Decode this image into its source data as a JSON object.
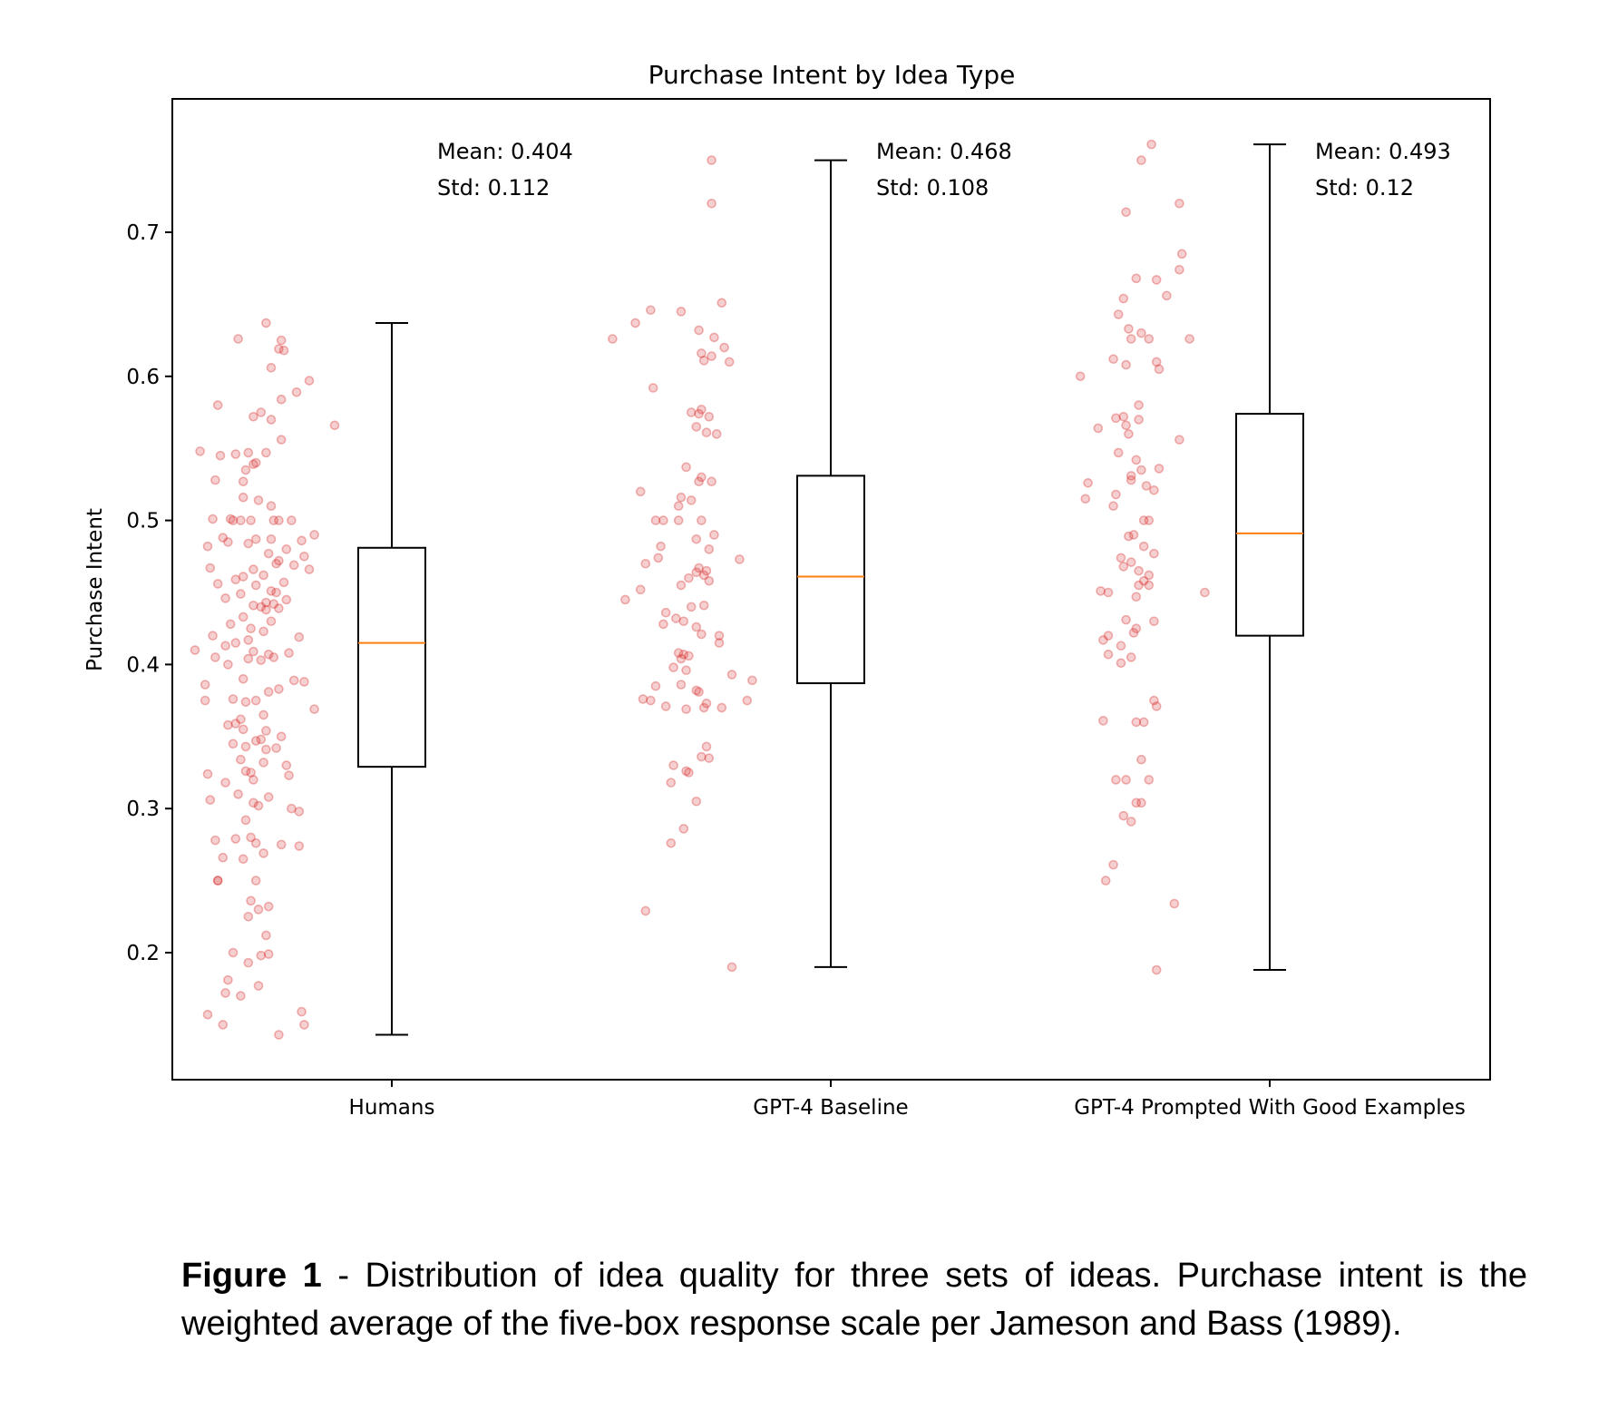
{
  "chart_data": {
    "type": "box",
    "title": "Purchase Intent by Idea Type",
    "ylabel": "Purchase Intent",
    "xlabel": "",
    "ylim": [
      0.11,
      0.79
    ],
    "yticks": [
      "0.2",
      "0.3",
      "0.4",
      "0.5",
      "0.6",
      "0.7"
    ],
    "categories": [
      "Humans",
      "GPT-4 Baseline",
      "GPT-4 Prompted With Good Examples"
    ],
    "colors": {
      "box": "#000000",
      "median": "#ff7f0e",
      "points": "#d62728"
    },
    "groups": [
      {
        "name": "Humans",
        "mean_label": "Mean: 0.404",
        "std_label": "Std: 0.112",
        "whisker_low": 0.143,
        "q1": 0.329,
        "median": 0.415,
        "q3": 0.481,
        "whisker_high": 0.637,
        "points": [
          0.637,
          0.626,
          0.625,
          0.619,
          0.618,
          0.606,
          0.597,
          0.589,
          0.584,
          0.58,
          0.575,
          0.572,
          0.57,
          0.566,
          0.556,
          0.548,
          0.547,
          0.547,
          0.546,
          0.545,
          0.54,
          0.539,
          0.535,
          0.528,
          0.527,
          0.516,
          0.514,
          0.51,
          0.501,
          0.501,
          0.5,
          0.5,
          0.5,
          0.5,
          0.5,
          0.5,
          0.49,
          0.488,
          0.487,
          0.487,
          0.486,
          0.485,
          0.484,
          0.482,
          0.48,
          0.477,
          0.475,
          0.472,
          0.47,
          0.469,
          0.467,
          0.466,
          0.466,
          0.462,
          0.461,
          0.459,
          0.457,
          0.456,
          0.455,
          0.451,
          0.45,
          0.449,
          0.446,
          0.445,
          0.443,
          0.442,
          0.441,
          0.44,
          0.439,
          0.438,
          0.433,
          0.43,
          0.428,
          0.425,
          0.423,
          0.42,
          0.419,
          0.417,
          0.415,
          0.413,
          0.41,
          0.409,
          0.408,
          0.407,
          0.405,
          0.405,
          0.404,
          0.403,
          0.4,
          0.39,
          0.389,
          0.388,
          0.386,
          0.383,
          0.381,
          0.376,
          0.375,
          0.375,
          0.374,
          0.369,
          0.365,
          0.362,
          0.359,
          0.358,
          0.355,
          0.354,
          0.35,
          0.348,
          0.347,
          0.345,
          0.343,
          0.342,
          0.341,
          0.334,
          0.332,
          0.33,
          0.326,
          0.325,
          0.324,
          0.323,
          0.32,
          0.318,
          0.31,
          0.308,
          0.306,
          0.304,
          0.302,
          0.3,
          0.298,
          0.292,
          0.28,
          0.279,
          0.278,
          0.276,
          0.275,
          0.274,
          0.269,
          0.266,
          0.265,
          0.25,
          0.25,
          0.25,
          0.236,
          0.232,
          0.23,
          0.225,
          0.212,
          0.2,
          0.199,
          0.198,
          0.193,
          0.181,
          0.177,
          0.172,
          0.17,
          0.159,
          0.157,
          0.15,
          0.15,
          0.143
        ],
        "jitter": [
          0.3,
          -0.8,
          0.9,
          0.8,
          1.0,
          0.5,
          2.0,
          1.5,
          0.9,
          -1.6,
          0.1,
          -0.2,
          0.5,
          3.0,
          0.9,
          -2.3,
          -0.4,
          0.3,
          -0.9,
          -1.5,
          -0.1,
          -0.2,
          -0.5,
          -1.7,
          -0.6,
          -0.6,
          0.0,
          0.5,
          -1.8,
          -1.1,
          -0.3,
          -0.7,
          0.6,
          0.8,
          1.3,
          -1.0,
          2.2,
          -1.4,
          -0.1,
          0.5,
          1.7,
          -1.2,
          -0.4,
          -2.0,
          1.1,
          0.4,
          1.8,
          0.8,
          0.7,
          1.4,
          -1.9,
          -0.2,
          2.0,
          0.2,
          -0.6,
          -0.9,
          1.0,
          -1.6,
          -0.1,
          0.5,
          0.7,
          -0.7,
          -1.3,
          1.1,
          0.3,
          0.6,
          -0.2,
          0.1,
          0.8,
          0.3,
          -0.6,
          0.5,
          -1.1,
          -0.3,
          0.2,
          -1.8,
          1.6,
          -0.4,
          -0.9,
          -1.3,
          -2.5,
          -0.2,
          1.2,
          0.4,
          -1.7,
          0.6,
          -0.4,
          0.1,
          -1.2,
          -0.6,
          1.4,
          1.8,
          -2.1,
          0.8,
          0.4,
          -1.0,
          -2.1,
          -0.1,
          -0.5,
          2.2,
          0.2,
          -0.7,
          -0.9,
          -1.2,
          -0.6,
          0.3,
          0.9,
          0.1,
          -0.1,
          -1.0,
          -0.5,
          0.7,
          0.3,
          -0.7,
          0.2,
          1.1,
          -0.5,
          -0.3,
          -2.0,
          1.2,
          -0.2,
          -1.3,
          -0.8,
          0.4,
          -1.9,
          -0.2,
          0.0,
          1.3,
          1.6,
          -0.5,
          -0.3,
          -0.9,
          -1.7,
          -0.1,
          0.9,
          1.6,
          0.2,
          -1.4,
          -0.6,
          -1.6,
          -0.1,
          -1.6,
          -0.3,
          0.4,
          0.0,
          -0.4,
          0.3,
          -1.0,
          0.4,
          0.1,
          -0.4,
          -1.2,
          0.0,
          -1.3,
          -0.7,
          1.7,
          -2.0,
          1.8,
          -1.4,
          0.8,
          -2.4
        ]
      },
      {
        "name": "GPT-4 Baseline",
        "mean_label": "Mean: 0.468",
        "std_label": "Std: 0.108",
        "whisker_low": 0.19,
        "q1": 0.387,
        "median": 0.461,
        "q3": 0.531,
        "whisker_high": 0.75,
        "points": [
          0.75,
          0.72,
          0.651,
          0.646,
          0.645,
          0.637,
          0.632,
          0.627,
          0.626,
          0.62,
          0.616,
          0.614,
          0.611,
          0.61,
          0.592,
          0.577,
          0.575,
          0.574,
          0.572,
          0.565,
          0.561,
          0.56,
          0.537,
          0.53,
          0.527,
          0.527,
          0.52,
          0.516,
          0.514,
          0.51,
          0.5,
          0.5,
          0.5,
          0.5,
          0.49,
          0.487,
          0.482,
          0.48,
          0.474,
          0.473,
          0.47,
          0.467,
          0.465,
          0.464,
          0.462,
          0.46,
          0.458,
          0.455,
          0.452,
          0.445,
          0.441,
          0.44,
          0.436,
          0.432,
          0.43,
          0.428,
          0.426,
          0.421,
          0.42,
          0.415,
          0.408,
          0.407,
          0.406,
          0.404,
          0.398,
          0.396,
          0.393,
          0.389,
          0.386,
          0.385,
          0.382,
          0.381,
          0.376,
          0.375,
          0.375,
          0.373,
          0.371,
          0.37,
          0.37,
          0.369,
          0.343,
          0.336,
          0.335,
          0.33,
          0.326,
          0.325,
          0.318,
          0.305,
          0.286,
          0.276,
          0.229,
          0.19
        ],
        "jitter": [
          0.7,
          0.7,
          1.1,
          -1.7,
          -0.5,
          -2.3,
          0.2,
          0.8,
          -3.2,
          1.2,
          0.3,
          0.7,
          0.4,
          1.4,
          -1.6,
          0.3,
          -0.1,
          0.2,
          0.6,
          0.1,
          0.5,
          0.9,
          -0.3,
          0.3,
          0.7,
          0.2,
          -2.1,
          -0.5,
          -0.1,
          -0.6,
          -1.5,
          -1.2,
          -0.6,
          0.3,
          0.8,
          0.1,
          -1.3,
          0.6,
          -1.4,
          1.8,
          -1.9,
          0.2,
          0.5,
          0.1,
          0.4,
          -0.2,
          0.6,
          -0.5,
          -2.1,
          -2.7,
          0.4,
          -0.1,
          -1.1,
          -0.7,
          -0.4,
          -1.2,
          0.1,
          0.3,
          1.0,
          1.0,
          -0.6,
          -0.4,
          -0.2,
          -0.5,
          -0.8,
          -0.3,
          1.5,
          2.3,
          -0.5,
          -1.5,
          0.1,
          0.2,
          -2.0,
          -1.7,
          2.1,
          0.5,
          -1.1,
          1.1,
          0.4,
          -0.3,
          0.5,
          0.3,
          0.6,
          -0.8,
          -0.3,
          -0.2,
          -0.9,
          0.1,
          -0.4,
          -0.9,
          -1.9,
          1.5
        ]
      },
      {
        "name": "GPT-4 Prompted With Good Examples",
        "mean_label": "Mean: 0.493",
        "std_label": "Std: 0.12",
        "whisker_low": 0.188,
        "q1": 0.42,
        "median": 0.491,
        "q3": 0.574,
        "whisker_high": 0.761,
        "points": [
          0.761,
          0.75,
          0.72,
          0.714,
          0.685,
          0.674,
          0.668,
          0.667,
          0.656,
          0.654,
          0.643,
          0.633,
          0.63,
          0.626,
          0.626,
          0.626,
          0.612,
          0.61,
          0.608,
          0.605,
          0.6,
          0.58,
          0.572,
          0.571,
          0.57,
          0.566,
          0.564,
          0.56,
          0.556,
          0.547,
          0.542,
          0.536,
          0.535,
          0.531,
          0.528,
          0.526,
          0.524,
          0.521,
          0.518,
          0.515,
          0.51,
          0.5,
          0.5,
          0.49,
          0.489,
          0.482,
          0.477,
          0.474,
          0.471,
          0.468,
          0.465,
          0.462,
          0.458,
          0.455,
          0.455,
          0.451,
          0.45,
          0.45,
          0.447,
          0.431,
          0.43,
          0.425,
          0.422,
          0.42,
          0.417,
          0.413,
          0.407,
          0.405,
          0.401,
          0.375,
          0.371,
          0.361,
          0.36,
          0.36,
          0.334,
          0.32,
          0.32,
          0.32,
          0.304,
          0.304,
          0.295,
          0.291,
          0.261,
          0.25,
          0.234,
          0.188
        ],
        "jitter": [
          0.7,
          0.3,
          1.8,
          -0.3,
          1.9,
          1.8,
          0.1,
          0.9,
          1.3,
          -0.4,
          -0.6,
          -0.2,
          0.3,
          0.6,
          -0.1,
          2.2,
          -0.8,
          0.9,
          -0.3,
          1.0,
          -2.1,
          0.2,
          -0.4,
          -0.7,
          0.2,
          -0.3,
          -1.4,
          -0.2,
          1.8,
          -0.6,
          0.1,
          1.0,
          0.3,
          -0.1,
          -0.1,
          -1.8,
          0.5,
          0.8,
          -0.7,
          -1.9,
          -0.8,
          0.4,
          0.6,
          0.0,
          -0.2,
          0.4,
          0.8,
          -0.5,
          -0.1,
          -0.4,
          0.2,
          0.6,
          0.4,
          0.6,
          0.2,
          -1.3,
          -1.0,
          2.8,
          0.1,
          -0.3,
          0.8,
          0.1,
          0.0,
          -1.0,
          -1.2,
          -0.5,
          -1.0,
          -0.1,
          -0.5,
          0.8,
          0.9,
          -1.2,
          0.1,
          0.4,
          0.3,
          -0.7,
          -0.3,
          0.6,
          0.1,
          0.3,
          -0.4,
          -0.1,
          -0.8,
          -1.1,
          1.6,
          0.9
        ]
      }
    ]
  },
  "caption": {
    "label": "Figure 1",
    "text": " - Distribution of idea quality for three sets of ideas. Purchase intent is the weighted average of the five-box response scale per Jameson and Bass (1989)."
  }
}
